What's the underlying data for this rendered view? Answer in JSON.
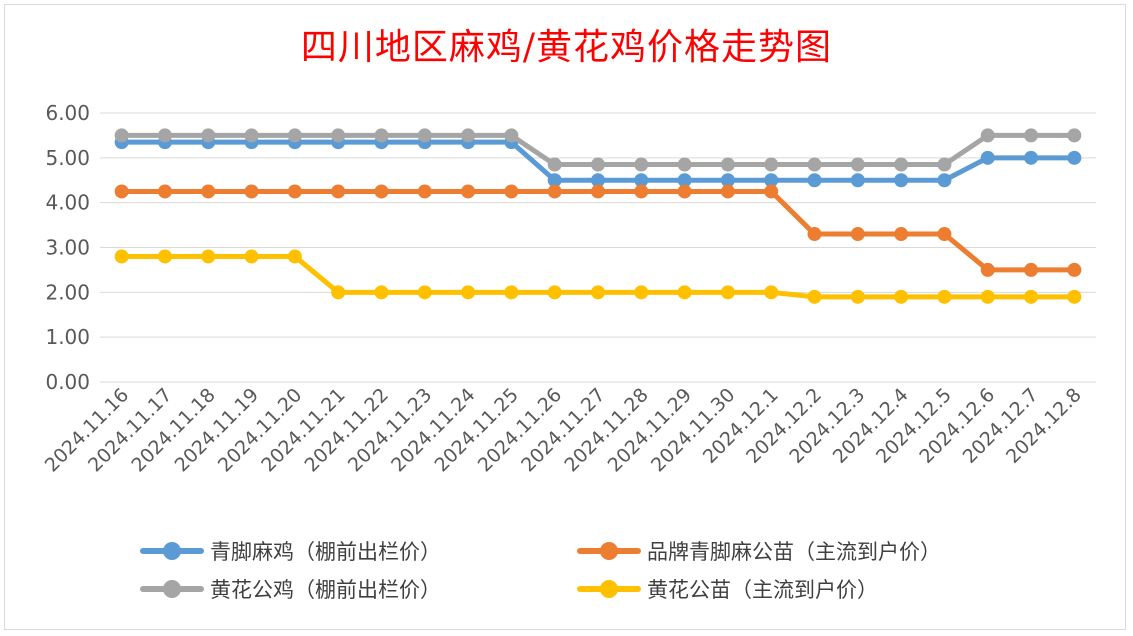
{
  "chart_data": {
    "type": "line",
    "title": "四川地区麻鸡/黄花鸡价格走势图",
    "categories": [
      "2024.11.16",
      "2024.11.17",
      "2024.11.18",
      "2024.11.19",
      "2024.11.20",
      "2024.11.21",
      "2024.11.22",
      "2024.11.23",
      "2024.11.24",
      "2024.11.25",
      "2024.11.26",
      "2024.11.27",
      "2024.11.28",
      "2024.11.29",
      "2024.11.30",
      "2024.12.1",
      "2024.12.2",
      "2024.12.3",
      "2024.12.4",
      "2024.12.5",
      "2024.12.6",
      "2024.12.7",
      "2024.12.8"
    ],
    "ylim": [
      0,
      6
    ],
    "yticks": [
      "0.00",
      "1.00",
      "2.00",
      "3.00",
      "4.00",
      "5.00",
      "6.00"
    ],
    "grid": true,
    "legend_position": "bottom",
    "series": [
      {
        "name": "青脚麻鸡（棚前出栏价）",
        "color": "#5b9bd5",
        "values": [
          5.35,
          5.35,
          5.35,
          5.35,
          5.35,
          5.35,
          5.35,
          5.35,
          5.35,
          5.35,
          4.5,
          4.5,
          4.5,
          4.5,
          4.5,
          4.5,
          4.5,
          4.5,
          4.5,
          4.5,
          5.0,
          5.0,
          5.0
        ]
      },
      {
        "name": "品牌青脚麻公苗（主流到户价）",
        "color": "#ed7d31",
        "values": [
          4.25,
          4.25,
          4.25,
          4.25,
          4.25,
          4.25,
          4.25,
          4.25,
          4.25,
          4.25,
          4.25,
          4.25,
          4.25,
          4.25,
          4.25,
          4.25,
          3.3,
          3.3,
          3.3,
          3.3,
          2.5,
          2.5,
          2.5
        ]
      },
      {
        "name": "黄花公鸡（棚前出栏价）",
        "color": "#a5a5a5",
        "values": [
          5.5,
          5.5,
          5.5,
          5.5,
          5.5,
          5.5,
          5.5,
          5.5,
          5.5,
          5.5,
          4.85,
          4.85,
          4.85,
          4.85,
          4.85,
          4.85,
          4.85,
          4.85,
          4.85,
          4.85,
          5.5,
          5.5,
          5.5
        ]
      },
      {
        "name": "黄花公苗（主流到户价）",
        "color": "#ffc000",
        "values": [
          2.8,
          2.8,
          2.8,
          2.8,
          2.8,
          2.0,
          2.0,
          2.0,
          2.0,
          2.0,
          2.0,
          2.0,
          2.0,
          2.0,
          2.0,
          2.0,
          1.9,
          1.9,
          1.9,
          1.9,
          1.9,
          1.9,
          1.9
        ]
      }
    ]
  }
}
